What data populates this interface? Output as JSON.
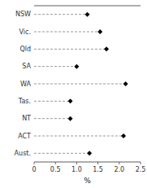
{
  "chart_data": {
    "type": "lollipop",
    "orientation": "horizontal",
    "categories": [
      "NSW",
      "Vic.",
      "Qld",
      "SA",
      "WA",
      "Tas.",
      "NT",
      "ACT",
      "Aust."
    ],
    "values": [
      1.25,
      1.55,
      1.7,
      1.0,
      2.15,
      0.85,
      0.85,
      2.1,
      1.3
    ],
    "xlabel": "%",
    "xlim": [
      0,
      2.5
    ],
    "xticks": [
      0,
      0.5,
      {
        "value": 1.0,
        "label": "1.0"
      },
      1.5,
      {
        "value": 2.0,
        "label": "2.0"
      },
      2.5
    ],
    "color": "black",
    "marker": "diamond",
    "line_style": "dashed"
  }
}
